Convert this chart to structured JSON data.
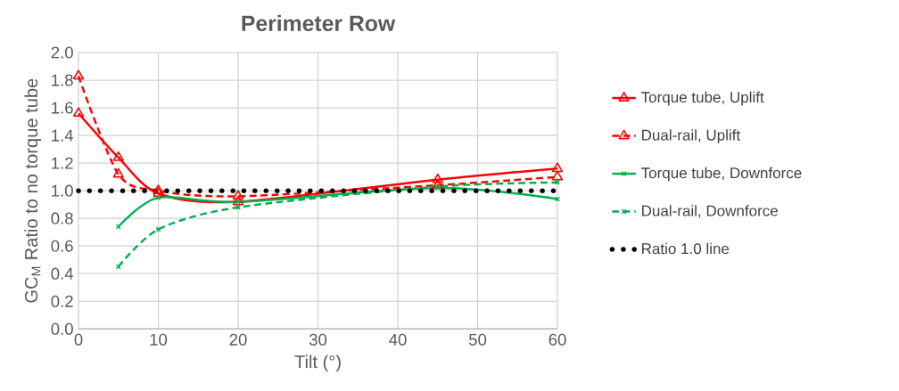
{
  "chart_data": {
    "type": "line",
    "title": "Perimeter Row",
    "xlabel": "Tilt (°)",
    "ylabel": "GC$_{M}$ Ratio to no torque tube",
    "x": [
      0,
      5,
      10,
      20,
      45,
      60
    ],
    "series": [
      {
        "name": "Torque tube, Uplift",
        "color": "#ff0000",
        "marker": "triangle",
        "line_style": "solid",
        "values": [
          1.56,
          1.24,
          0.98,
          0.92,
          1.08,
          1.16
        ]
      },
      {
        "name": "Dual-rail, Uplift",
        "color": "#ff0000",
        "marker": "triangle",
        "line_style": "dashed",
        "values": [
          1.83,
          1.12,
          1.0,
          0.96,
          1.04,
          1.1
        ]
      },
      {
        "name": "Torque tube, Downforce",
        "color": "#00b050",
        "marker": "cross",
        "line_style": "solid",
        "values": [
          null,
          0.74,
          0.95,
          0.92,
          1.02,
          0.94
        ]
      },
      {
        "name": "Dual-rail, Downforce",
        "color": "#00b050",
        "marker": "cross",
        "line_style": "dashed",
        "values": [
          null,
          0.45,
          0.72,
          0.88,
          1.03,
          1.06
        ]
      },
      {
        "name": "Ratio 1.0 line",
        "color": "#000000",
        "marker": "none",
        "line_style": "dotted",
        "x": [
          0,
          60
        ],
        "values": [
          1.0,
          1.0
        ]
      }
    ],
    "xlim": [
      0,
      60
    ],
    "xticks": [
      0,
      10,
      20,
      30,
      40,
      50,
      60
    ],
    "ylim": [
      0.0,
      2.0
    ],
    "yticks": [
      {
        "value": 0,
        "label": "0.0"
      },
      {
        "value": 0.2,
        "label": "0.2"
      },
      {
        "value": 0.4,
        "label": "0.4"
      },
      {
        "value": 0.6,
        "label": "0.6"
      },
      {
        "value": 0.8,
        "label": "0.8"
      },
      {
        "value": 1.0,
        "label": "1.0"
      },
      {
        "value": 1.2,
        "label": "1.2"
      },
      {
        "value": 1.4,
        "label": "1.4"
      },
      {
        "value": 1.6,
        "label": "1.6"
      },
      {
        "value": 1.8,
        "label": "1.8"
      },
      {
        "value": 2.0,
        "label": "2.0"
      }
    ],
    "grid": true,
    "legend": "right"
  }
}
